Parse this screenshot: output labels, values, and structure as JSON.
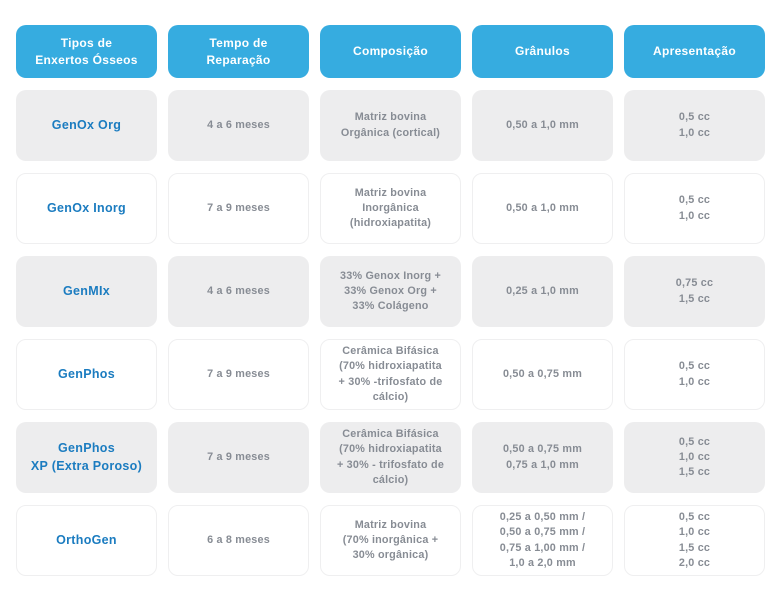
{
  "colors": {
    "header_bg": "#36ACE0",
    "header_text": "#FFFFFF",
    "product_text": "#1B7CC0",
    "row_fill": "#EDEDEE",
    "row_border": "#EFEFF0",
    "cell_text": "#878C94",
    "page_bg": "#FFFFFF"
  },
  "table": {
    "columns": [
      "Tipos de\nEnxertos Ósseos",
      "Tempo de\nReparação",
      "Composição",
      "Grânulos",
      "Apresentação"
    ],
    "rows": [
      {
        "produto": "GenOx Org",
        "tempo": "4 a 6 meses",
        "composicao": "Matriz bovina\nOrgânica (cortical)",
        "granulos": "0,50 a 1,0 mm",
        "apresentacao": "0,5 cc\n1,0 cc"
      },
      {
        "produto": "GenOx Inorg",
        "tempo": "7 a 9 meses",
        "composicao": "Matriz bovina\nInorgânica\n(hidroxiapatita)",
        "granulos": "0,50 a 1,0 mm",
        "apresentacao": "0,5 cc\n1,0 cc"
      },
      {
        "produto": "GenMIx",
        "tempo": "4 a 6 meses",
        "composicao": "33% Genox Inorg +\n33% Genox Org +\n33% Colágeno",
        "granulos": "0,25 a 1,0 mm",
        "apresentacao": "0,75 cc\n1,5 cc"
      },
      {
        "produto": "GenPhos",
        "tempo": "7 a 9 meses",
        "composicao": "Cerâmica Bifásica\n(70% hidroxiapatita\n+ 30% -trifosfato de\ncálcio)",
        "granulos": "0,50 a 0,75 mm",
        "apresentacao": "0,5 cc\n1,0 cc"
      },
      {
        "produto": "GenPhos\nXP (Extra Poroso)",
        "tempo": "7 a 9 meses",
        "composicao": "Cerâmica Bifásica\n(70% hidroxiapatita\n+ 30% - trifosfato de\ncálcio)",
        "granulos": "0,50 a 0,75 mm\n0,75 a 1,0 mm",
        "apresentacao": "0,5 cc\n1,0 cc\n1,5 cc"
      },
      {
        "produto": "OrthoGen",
        "tempo": "6 a 8 meses",
        "composicao": "Matriz bovina\n(70% inorgânica +\n30% orgânica)",
        "granulos": "0,25 a 0,50 mm /\n0,50 a 0,75 mm /\n0,75 a 1,00 mm /\n1,0 a 2,0 mm",
        "apresentacao": "0,5 cc\n1,0 cc\n1,5 cc\n2,0 cc"
      }
    ]
  }
}
